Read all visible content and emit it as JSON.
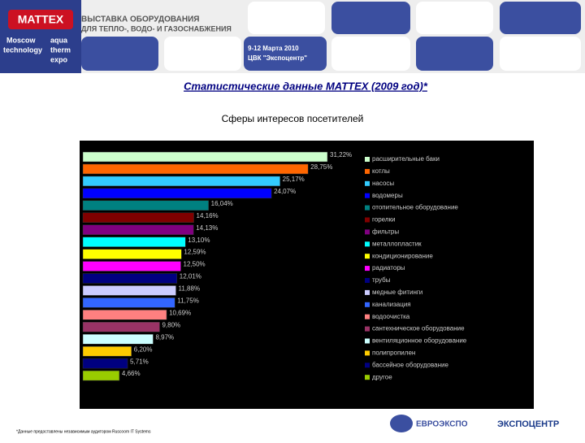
{
  "header": {
    "logo": "MATTEX",
    "line1": "ВЫСТАВКА ОБОРУДОВАНИЯ",
    "line2": "ДЛЯ ТЕПЛО-, ВОДО- И ГАЗОСНАБЖЕНИЯ",
    "expo": [
      "Moscow",
      "aqua",
      "technology",
      "therm",
      "expo"
    ],
    "dates": "9-12 Марта 2010",
    "venue": "ЦВК \"Экспоцентр\""
  },
  "chart_data": {
    "type": "hbar",
    "title": "Статистические данные MATTEX (2009 год)*",
    "subtitle": "Сферы интересов посетителей",
    "categories": [
      "расширительные баки",
      "котлы",
      "насосы",
      "водомеры",
      "отопительное оборудование",
      "горелки",
      "фильтры",
      "металлопластик",
      "кондиционирование",
      "радиаторы",
      "трубы",
      "медные фитинги",
      "канализация",
      "водоочистка",
      "сантехническое оборудование",
      "вентиляционное оборудование",
      "полипропилен",
      "бассейное оборудование",
      "другое"
    ],
    "values": [
      31.22,
      28.75,
      25.17,
      24.07,
      16.04,
      14.16,
      14.13,
      13.1,
      12.59,
      12.5,
      12.01,
      11.88,
      11.75,
      10.69,
      9.8,
      8.97,
      6.2,
      5.71,
      4.66
    ],
    "value_labels": [
      "31,22%",
      "28,75%",
      "25,17%",
      "24,07%",
      "16,04%",
      "14,16%",
      "14,13%",
      "13,10%",
      "12,59%",
      "12,50%",
      "12,01%",
      "11,88%",
      "11,75%",
      "10,69%",
      "9,80%",
      "8,97%",
      "6,20%",
      "5,71%",
      "4,66%"
    ],
    "colors": [
      "#ccffcc",
      "#ff6600",
      "#33ccff",
      "#0000ff",
      "#008080",
      "#800000",
      "#800080",
      "#00ffff",
      "#ffff00",
      "#ff00ff",
      "#000080",
      "#ccccff",
      "#3366ff",
      "#ff8080",
      "#993366",
      "#ccffff",
      "#ffcc00",
      "#000080",
      "#99cc00"
    ],
    "legend": "right"
  },
  "footer": {
    "note": "*Данные предоставлены независимым аудитором Ruscoom IT Systems",
    "logo1": "ЕВРОЭКСПО",
    "logo2": "ЭКСПОЦЕНТР"
  }
}
